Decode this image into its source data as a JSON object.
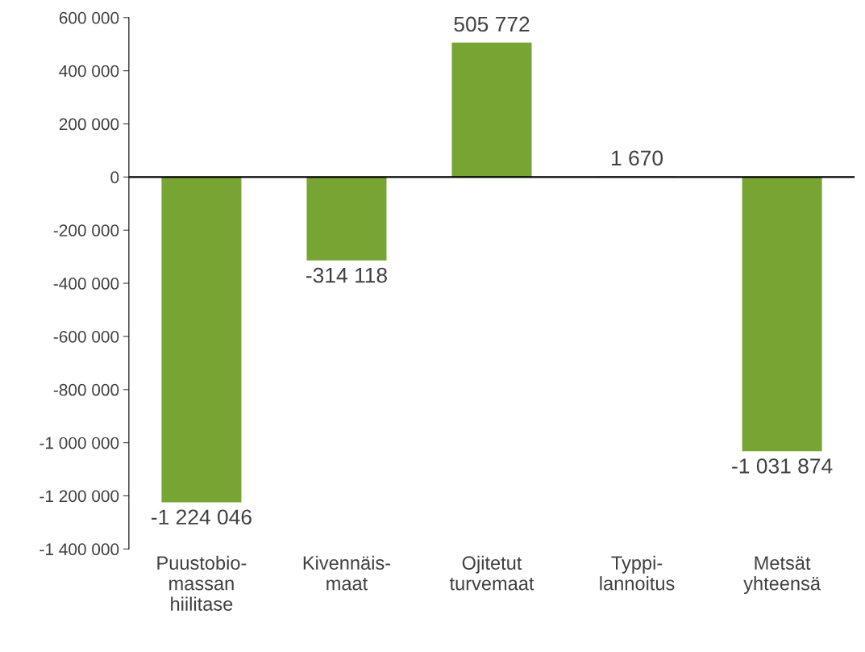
{
  "chart_data": {
    "type": "bar",
    "categories": [
      "Puustobio-\nmassan\nhiilitase",
      "Kivennäis-\nmaat",
      "Ojitetut\nturvemaat",
      "Typpi-\nlannoitus",
      "Metsät\nyhteensä"
    ],
    "values": [
      -1224046,
      -314118,
      505772,
      1670,
      -1031874
    ],
    "value_labels": [
      "-1 224 046",
      "-314 118",
      "505 772",
      "1 670",
      "-1 031 874"
    ],
    "color": "#76a534",
    "ylim": [
      -1400000,
      600000
    ],
    "yticks": [
      {
        "value": -1400000,
        "label": "-1 400 000"
      },
      {
        "value": -1200000,
        "label": "-1 200 000"
      },
      {
        "value": -1000000,
        "label": "-1 000 000"
      },
      {
        "value": -800000,
        "label": "-800 000"
      },
      {
        "value": -600000,
        "label": "-600 000"
      },
      {
        "value": -400000,
        "label": "-400 000"
      },
      {
        "value": -200000,
        "label": "-200 000"
      },
      0,
      {
        "value": 200000,
        "label": "200 000"
      },
      {
        "value": 400000,
        "label": "400 000"
      },
      {
        "value": 600000,
        "label": "600 000"
      }
    ]
  }
}
